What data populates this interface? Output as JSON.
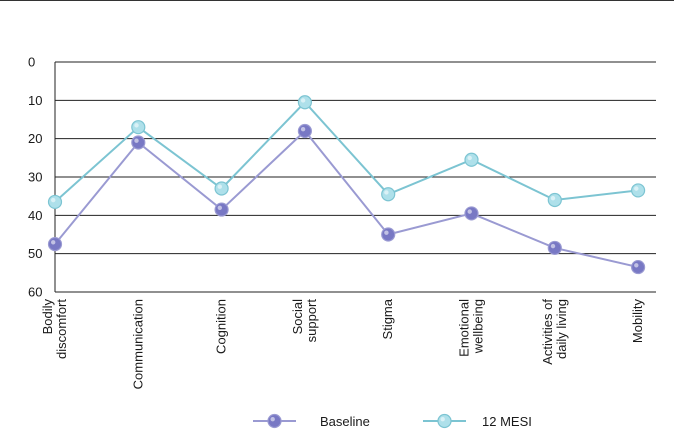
{
  "chart_data": {
    "type": "line",
    "y_reversed": true,
    "ylim": [
      0,
      60
    ],
    "yticks": [
      "0",
      "10",
      "20",
      "30",
      "40",
      "50",
      "60"
    ],
    "categories": [
      [
        "Bodily",
        "discomfort"
      ],
      [
        "Communication"
      ],
      [
        "Cognition"
      ],
      [
        "Social",
        "support"
      ],
      [
        "Stigma"
      ],
      [
        "Emotional",
        "wellbeing"
      ],
      [
        "Activities of",
        "daily living"
      ],
      [
        "Mobility"
      ]
    ],
    "series": [
      {
        "name": "Baseline",
        "values": [
          47.5,
          21,
          38.5,
          18,
          45,
          39.5,
          48.5,
          53.5
        ],
        "line_color": "#9a9ad2",
        "marker_color": "#7878c4"
      },
      {
        "name": "12 MESI",
        "values": [
          36.5,
          17,
          33,
          10.5,
          34.5,
          25.5,
          36,
          33.5
        ],
        "line_color": "#7cc4d2",
        "marker_color": "#aee0ea"
      }
    ],
    "gridlines": true,
    "legend_position": "bottom"
  }
}
